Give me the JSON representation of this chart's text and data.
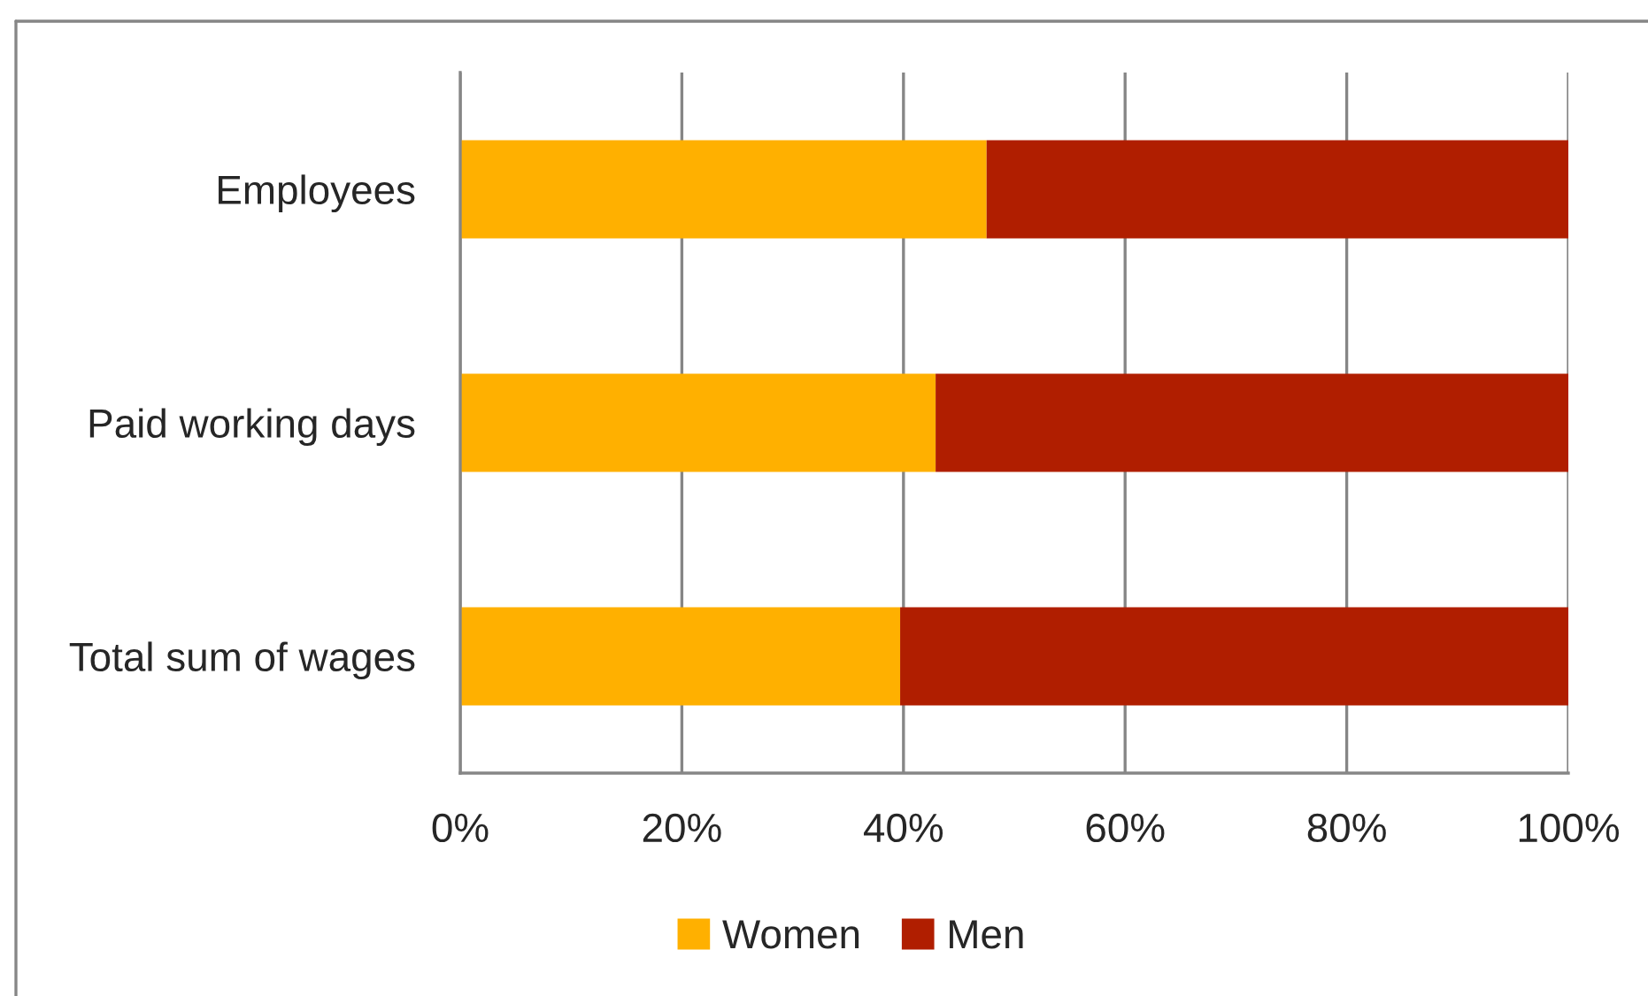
{
  "chart_data": {
    "type": "bar",
    "orientation": "horizontal",
    "stacked": true,
    "categories": [
      "Employees",
      "Paid working days",
      "Total sum of wages"
    ],
    "series": [
      {
        "name": "Women",
        "color": "#ffb000",
        "values": [
          47.5,
          42.9,
          39.7
        ]
      },
      {
        "name": "Men",
        "color": "#b01e00",
        "values": [
          52.5,
          57.1,
          60.3
        ]
      }
    ],
    "xlim": [
      0,
      100
    ],
    "xticks": [
      {
        "value": 0,
        "label": "0%"
      },
      {
        "value": 20,
        "label": "20%"
      },
      {
        "value": 40,
        "label": "40%"
      },
      {
        "value": 60,
        "label": "60%"
      },
      {
        "value": 80,
        "label": "80%"
      },
      {
        "value": 100,
        "label": "100%"
      }
    ],
    "grid": "x",
    "legend": "bottom"
  }
}
